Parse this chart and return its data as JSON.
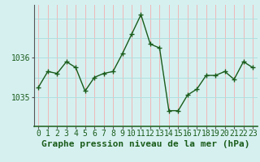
{
  "x": [
    0,
    1,
    2,
    3,
    4,
    5,
    6,
    7,
    8,
    9,
    10,
    11,
    12,
    13,
    14,
    15,
    16,
    17,
    18,
    19,
    20,
    21,
    22,
    23
  ],
  "y": [
    1035.25,
    1035.65,
    1035.6,
    1035.9,
    1035.75,
    1035.15,
    1035.5,
    1035.6,
    1035.65,
    1036.1,
    1036.6,
    1037.1,
    1036.35,
    1036.25,
    1034.65,
    1034.65,
    1035.05,
    1035.2,
    1035.55,
    1035.55,
    1035.65,
    1035.45,
    1035.9,
    1035.75
  ],
  "line_color": "#1a5c1a",
  "marker_color": "#1a5c1a",
  "bg_color": "#d6f0f0",
  "grid_color": "#b0dede",
  "xlabel": "Graphe pression niveau de la mer (hPa)",
  "yticks": [
    1035,
    1036
  ],
  "ylim": [
    1034.25,
    1037.35
  ],
  "xlim": [
    -0.5,
    23.5
  ],
  "xlabel_fontsize": 8,
  "tick_fontsize": 7,
  "grid_h_values": [
    1035.0,
    1035.5,
    1036.0,
    1036.5,
    1037.0
  ],
  "grid_v_values": [
    0,
    1,
    2,
    3,
    4,
    5,
    6,
    7,
    8,
    9,
    10,
    11,
    12,
    13,
    14,
    15,
    16,
    17,
    18,
    19,
    20,
    21,
    22,
    23
  ]
}
